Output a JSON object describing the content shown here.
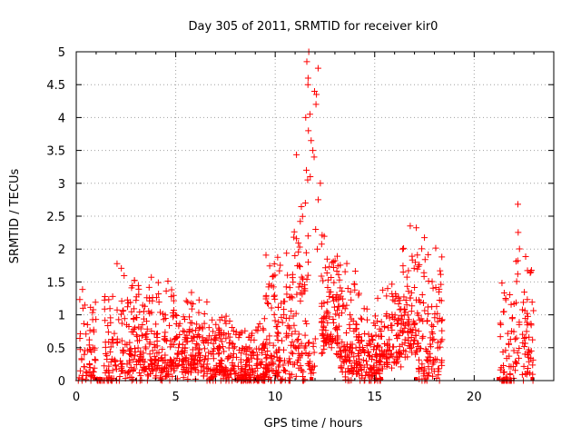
{
  "chart_data": {
    "type": "scatter",
    "title": "Day 305 of 2011, SRMTID for receiver kir0",
    "xlabel": "GPS time / hours",
    "ylabel": "SRMTID / TECUs",
    "xlim": [
      0,
      24
    ],
    "ylim": [
      0,
      5
    ],
    "grid": true,
    "marker": "+",
    "xticks": [
      "0",
      "5",
      "10",
      "15",
      "20"
    ],
    "yticks": [
      "0",
      "0.5",
      "1",
      "1.5",
      "2",
      "2.5",
      "3",
      "3.5",
      "4",
      "4.5",
      "5"
    ],
    "series": [
      {
        "name": "SRMTID",
        "color": "#ff0000",
        "segments": [
          {
            "start": 0.1,
            "end": 1.0,
            "base": 0.35,
            "amp": 0.6,
            "count": 60
          },
          {
            "start": 1.0,
            "end": 1.4,
            "base": 0.0,
            "amp": 0.02,
            "count": 10
          },
          {
            "start": 1.4,
            "end": 2.2,
            "base": 0.45,
            "amp": 0.8,
            "count": 60
          },
          {
            "start": 2.2,
            "end": 3.5,
            "base": 0.45,
            "amp": 0.7,
            "count": 120
          },
          {
            "start": 3.5,
            "end": 5.0,
            "base": 0.45,
            "amp": 0.6,
            "count": 140
          },
          {
            "start": 5.0,
            "end": 6.5,
            "base": 0.4,
            "amp": 0.5,
            "count": 140
          },
          {
            "start": 6.5,
            "end": 8.0,
            "base": 0.3,
            "amp": 0.45,
            "count": 140
          },
          {
            "start": 8.0,
            "end": 9.5,
            "base": 0.2,
            "amp": 0.4,
            "count": 140
          },
          {
            "start": 9.5,
            "end": 10.8,
            "base": 0.55,
            "amp": 0.8,
            "count": 130
          },
          {
            "start": 10.8,
            "end": 11.6,
            "base": 0.9,
            "amp": 1.3,
            "count": 80
          },
          {
            "start": 11.6,
            "end": 12.1,
            "base": 0.3,
            "amp": 0.3,
            "count": 20
          },
          {
            "start": 12.3,
            "end": 13.3,
            "base": 0.95,
            "amp": 0.8,
            "count": 110
          },
          {
            "start": 13.3,
            "end": 14.3,
            "base": 0.45,
            "amp": 0.7,
            "count": 110
          },
          {
            "start": 14.3,
            "end": 15.3,
            "base": 0.25,
            "amp": 0.5,
            "count": 100
          },
          {
            "start": 15.3,
            "end": 16.4,
            "base": 0.6,
            "amp": 0.55,
            "count": 100
          },
          {
            "start": 16.4,
            "end": 17.2,
            "base": 0.9,
            "amp": 0.8,
            "count": 80
          },
          {
            "start": 17.2,
            "end": 18.4,
            "base": 0.6,
            "amp": 0.9,
            "count": 110
          },
          {
            "start": 21.3,
            "end": 22.0,
            "base": 0.3,
            "amp": 0.8,
            "count": 60
          },
          {
            "start": 22.0,
            "end": 22.3,
            "base": 0.9,
            "amp": 1.3,
            "count": 20
          },
          {
            "start": 22.4,
            "end": 23.0,
            "base": 0.5,
            "amp": 0.8,
            "count": 50
          }
        ],
        "spike": {
          "x_range": [
            11.5,
            12.3
          ],
          "values": [
            1.6,
            1.8,
            2.0,
            2.2,
            2.3,
            2.7,
            2.75,
            3.0,
            3.05,
            3.1,
            3.2,
            3.4,
            3.5,
            3.65,
            3.8,
            4.0,
            4.05,
            4.2,
            4.35,
            4.4,
            4.5,
            4.6,
            4.75,
            4.85,
            5.0
          ]
        },
        "zero_run_x": [
          0.9,
          1.0,
          1.1,
          1.2,
          1.25,
          11.8,
          11.85,
          15.3,
          15.35,
          17.05,
          17.1,
          21.2,
          21.25,
          22.9,
          22.95
        ]
      }
    ]
  }
}
